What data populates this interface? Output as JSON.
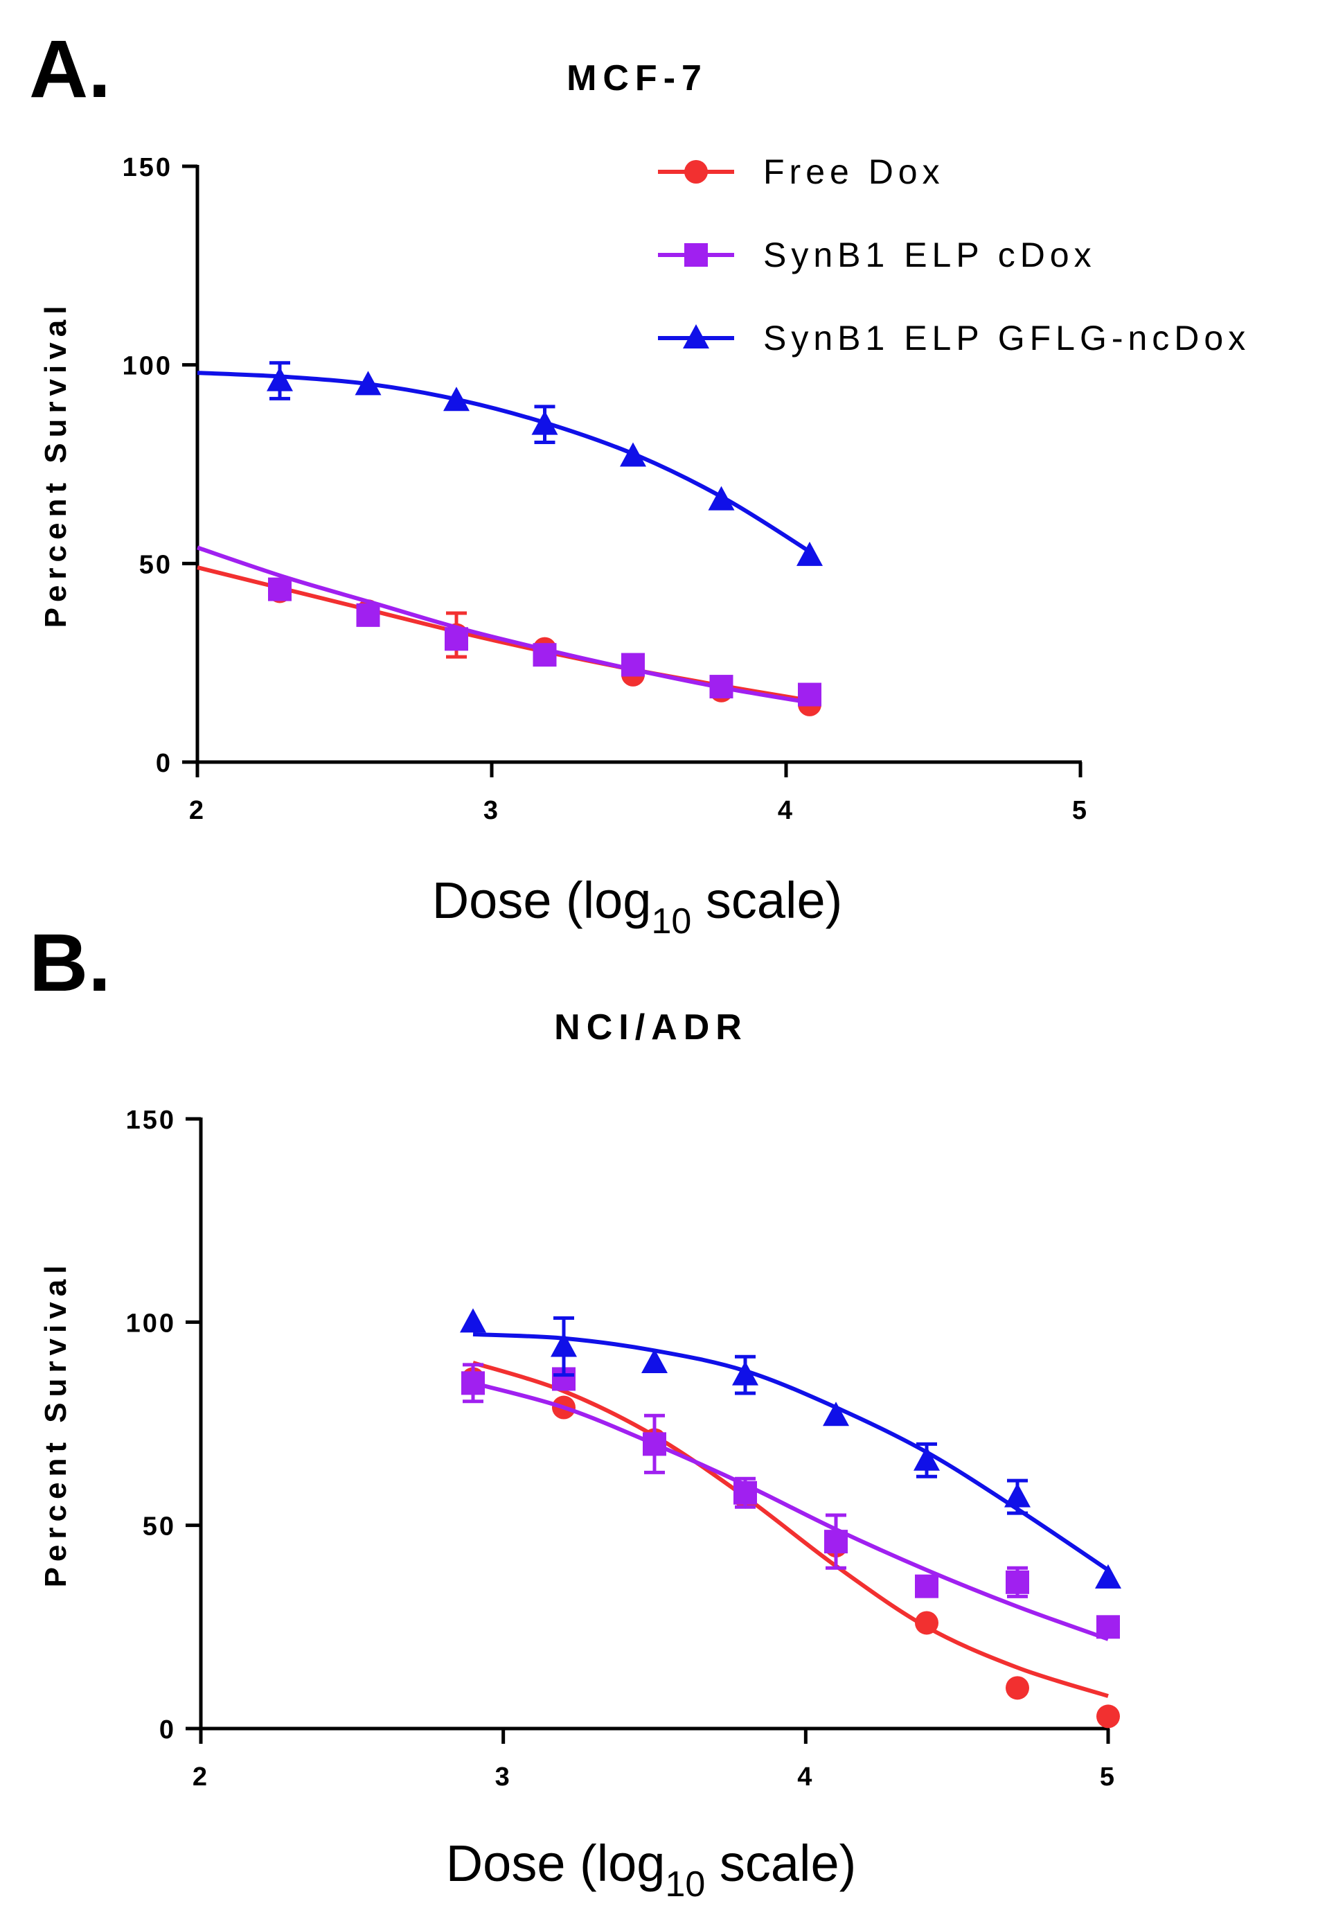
{
  "chart_data": [
    {
      "type": "scatter",
      "panel_label": "A.",
      "title": "MCF-7",
      "ylabel": "Percent Survival",
      "xlabel": {
        "prefix": "Dose (log",
        "subscript": "10",
        "suffix": " scale)"
      },
      "xlim": [
        2,
        5
      ],
      "ylim": [
        0,
        150
      ],
      "xticks": [
        "2",
        "3",
        "4",
        "5"
      ],
      "yticks": [
        "0",
        "50",
        "100",
        "150"
      ],
      "legend_position": "top-right",
      "series": [
        {
          "name": "Free Dox",
          "color": "#f23030",
          "marker": "circle",
          "x": [
            2.28,
            2.58,
            2.88,
            3.18,
            3.48,
            3.78,
            4.08
          ],
          "y": [
            43,
            38,
            32,
            28.5,
            22,
            18,
            14.5
          ],
          "err": [
            0,
            0,
            5.5,
            0,
            0,
            0,
            0
          ],
          "fit": {
            "x": [
              2.0,
              2.3,
              2.6,
              2.9,
              3.2,
              3.5,
              3.8,
              4.08
            ],
            "y": [
              49,
              43.5,
              38,
              32.5,
              27.5,
              23,
              19,
              15.5
            ]
          }
        },
        {
          "name": "SynB1 ELP cDox",
          "color": "#a020f0",
          "marker": "square",
          "x": [
            2.28,
            2.58,
            2.88,
            3.18,
            3.48,
            3.78,
            4.08
          ],
          "y": [
            43.5,
            37,
            31,
            27,
            24.5,
            19,
            17
          ],
          "err": [
            0,
            0,
            0,
            0,
            0,
            0,
            0
          ],
          "fit": {
            "x": [
              2.0,
              2.3,
              2.6,
              2.9,
              3.2,
              3.5,
              3.8,
              4.08
            ],
            "y": [
              54,
              46.5,
              40,
              33.5,
              28,
              23,
              18.5,
              15
            ]
          }
        },
        {
          "name": "SynB1 ELP GFLG-ncDox",
          "color": "#1010e8",
          "marker": "triangle",
          "x": [
            2.28,
            2.58,
            2.88,
            3.18,
            3.48,
            3.78,
            4.08
          ],
          "y": [
            96,
            95,
            91,
            85,
            77,
            66,
            52
          ],
          "err": [
            4.5,
            0,
            0,
            4.5,
            0,
            0,
            0
          ],
          "fit": {
            "x": [
              2.0,
              2.3,
              2.6,
              2.9,
              3.2,
              3.5,
              3.8,
              4.08
            ],
            "y": [
              98,
              97,
              95,
              91,
              85,
              77,
              66,
              53
            ]
          }
        }
      ]
    },
    {
      "type": "scatter",
      "panel_label": "B.",
      "title": "NCI/ADR",
      "ylabel": "Percent Survival",
      "xlabel": {
        "prefix": "Dose (log",
        "subscript": "10",
        "suffix": " scale)"
      },
      "xlim": [
        2,
        5
      ],
      "ylim": [
        0,
        150
      ],
      "xticks": [
        "2",
        "3",
        "4",
        "5"
      ],
      "yticks": [
        "0",
        "50",
        "100",
        "150"
      ],
      "series": [
        {
          "name": "Free Dox",
          "color": "#f23030",
          "marker": "circle",
          "x": [
            2.9,
            3.2,
            3.5,
            3.8,
            4.1,
            4.4,
            4.7,
            5.0
          ],
          "y": [
            86,
            79,
            71,
            57,
            45,
            26,
            10,
            3
          ],
          "err": [
            0,
            0,
            0,
            0,
            0,
            0,
            0,
            0
          ],
          "fit": {
            "x": [
              2.9,
              3.2,
              3.5,
              3.8,
              4.1,
              4.4,
              4.7,
              5.0
            ],
            "y": [
              90,
              83,
              72,
              57,
              40,
              25,
              15,
              8
            ]
          }
        },
        {
          "name": "SynB1 ELP cDox",
          "color": "#a020f0",
          "marker": "square",
          "x": [
            2.9,
            3.2,
            3.5,
            3.8,
            4.1,
            4.4,
            4.7,
            5.0
          ],
          "y": [
            85,
            86,
            70,
            58,
            46,
            35,
            36,
            25
          ],
          "err": [
            4.5,
            0,
            7,
            3.5,
            6.5,
            0,
            3.5,
            0
          ],
          "fit": {
            "x": [
              2.9,
              3.2,
              3.5,
              3.8,
              4.1,
              4.4,
              4.7,
              5.0
            ],
            "y": [
              85,
              79,
              70,
              60,
              49,
              39,
              30,
              22
            ]
          }
        },
        {
          "name": "SynB1 ELP GFLG-ncDox",
          "color": "#1010e8",
          "marker": "triangle",
          "x": [
            2.9,
            3.2,
            3.5,
            3.8,
            4.1,
            4.4,
            4.7,
            5.0
          ],
          "y": [
            100,
            94,
            90,
            87,
            77,
            66,
            57,
            37
          ],
          "err": [
            0,
            7,
            0,
            4.5,
            0,
            4,
            4,
            0
          ],
          "fit": {
            "x": [
              2.9,
              3.2,
              3.5,
              3.8,
              4.1,
              4.4,
              4.7,
              5.0
            ],
            "y": [
              97,
              96,
              93,
              88,
              79,
              68,
              54,
              39
            ]
          }
        }
      ]
    }
  ]
}
